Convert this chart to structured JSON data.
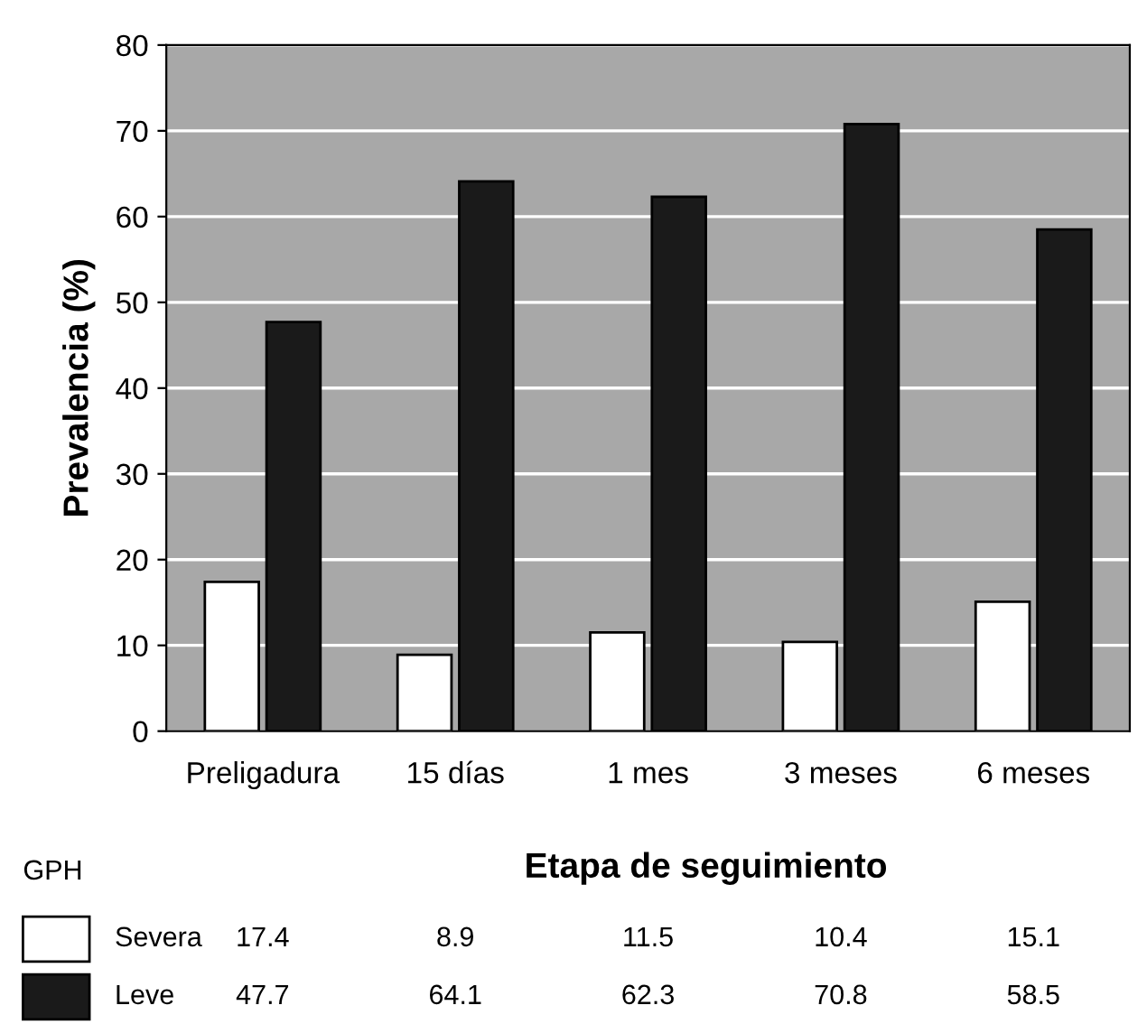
{
  "chart_data": {
    "type": "bar",
    "xlabel": "Etapa de seguimiento",
    "ylabel": "Prevalencia (%)",
    "legend_title": "GPH",
    "categories": [
      "Preligadura",
      "15 días",
      "1 mes",
      "3 meses",
      "6 meses"
    ],
    "series": [
      {
        "name": "Severa",
        "color": "#ffffff",
        "values": [
          17.4,
          8.9,
          11.5,
          10.4,
          15.1
        ]
      },
      {
        "name": "Leve",
        "color": "#1a1a1a",
        "values": [
          47.7,
          64.1,
          62.3,
          70.8,
          58.5
        ]
      }
    ],
    "ylim": [
      0,
      80
    ],
    "yticks": [
      0,
      10,
      20,
      30,
      40,
      50,
      60,
      70,
      80
    ],
    "grid": "y",
    "legend": "bottom left",
    "data_labels": true
  }
}
